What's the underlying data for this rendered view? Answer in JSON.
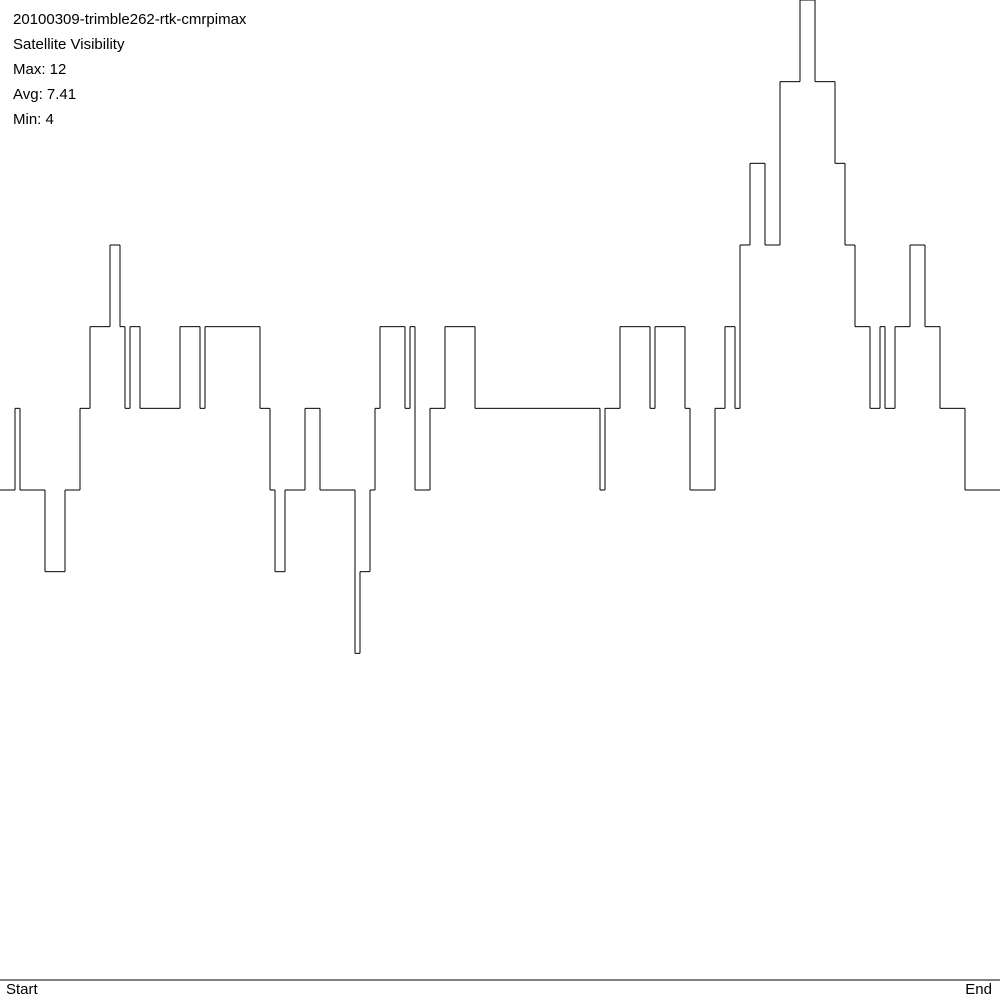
{
  "chart_data": {
    "type": "step",
    "title": "20100309-trimble262-rtk-cmrpimax",
    "subtitle": "Satellite Visibility",
    "stats": [
      "Max: 12",
      "Avg: 7.41",
      "Min: 4"
    ],
    "x_start_label": "Start",
    "x_end_label": "End",
    "color": "#000000",
    "ylim": [
      0,
      12
    ],
    "values": [
      6,
      6,
      6,
      7,
      6,
      6,
      6,
      6,
      6,
      5,
      5,
      5,
      5,
      6,
      6,
      6,
      7,
      7,
      8,
      8,
      8,
      8,
      9,
      9,
      8,
      7,
      8,
      8,
      7,
      7,
      7,
      7,
      7,
      7,
      7,
      7,
      8,
      8,
      8,
      8,
      7,
      8,
      8,
      8,
      8,
      8,
      8,
      8,
      8,
      8,
      8,
      8,
      7,
      7,
      6,
      5,
      5,
      6,
      6,
      6,
      6,
      7,
      7,
      7,
      6,
      6,
      6,
      6,
      6,
      6,
      6,
      4,
      5,
      5,
      6,
      7,
      8,
      8,
      8,
      8,
      8,
      7,
      8,
      6,
      6,
      6,
      7,
      7,
      7,
      8,
      8,
      8,
      8,
      8,
      8,
      7,
      7,
      7,
      7,
      7,
      7,
      7,
      7,
      7,
      7,
      7,
      7,
      7,
      7,
      7,
      7,
      7,
      7,
      7,
      7,
      7,
      7,
      7,
      7,
      7,
      6,
      7,
      7,
      7,
      8,
      8,
      8,
      8,
      8,
      8,
      7,
      8,
      8,
      8,
      8,
      8,
      8,
      7,
      6,
      6,
      6,
      6,
      6,
      7,
      7,
      8,
      8,
      7,
      9,
      9,
      10,
      10,
      10,
      9,
      9,
      9,
      11,
      11,
      11,
      11,
      12,
      12,
      12,
      11,
      11,
      11,
      11,
      10,
      10,
      9,
      9,
      8,
      8,
      8,
      7,
      7,
      8,
      7,
      7,
      8,
      8,
      8,
      9,
      9,
      9,
      8,
      8,
      8,
      7,
      7,
      7,
      7,
      7,
      6,
      6,
      6,
      6,
      6,
      6,
      6
    ]
  }
}
